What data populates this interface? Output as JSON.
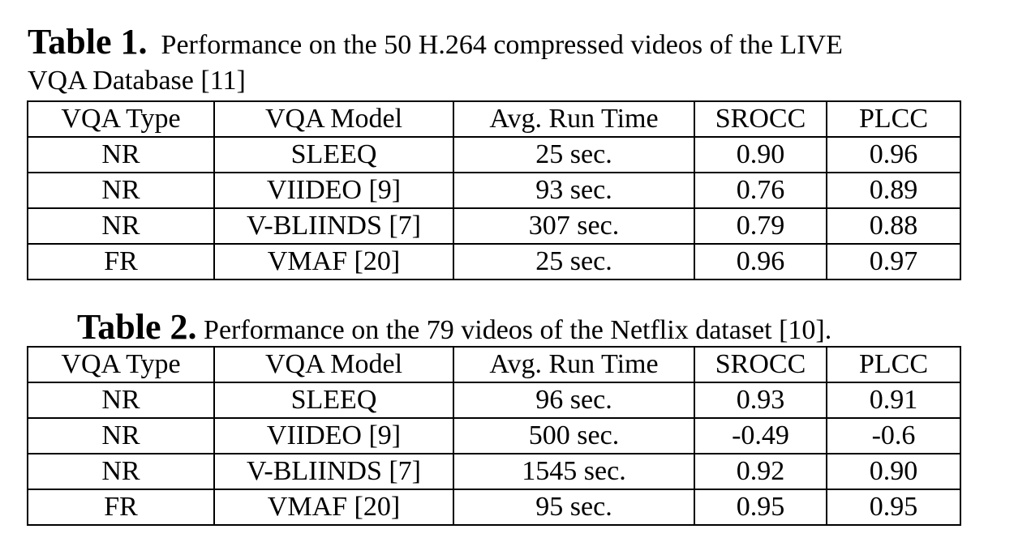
{
  "table1": {
    "label": "Table 1",
    "caption_line1": "Performance on the 50 H.264 compressed videos of the LIVE",
    "caption_line2": "VQA Database [11]",
    "headers": [
      "VQA Type",
      "VQA Model",
      "Avg. Run Time",
      "SROCC",
      "PLCC"
    ],
    "rows": [
      [
        "NR",
        "SLEEQ",
        "25 sec.",
        "0.90",
        "0.96"
      ],
      [
        "NR",
        "VIIDEO [9]",
        "93 sec.",
        "0.76",
        "0.89"
      ],
      [
        "NR",
        "V-BLIINDS [7]",
        "307 sec.",
        "0.79",
        "0.88"
      ],
      [
        "FR",
        "VMAF [20]",
        "25 sec.",
        "0.96",
        "0.97"
      ]
    ]
  },
  "table2": {
    "label": "Table 2",
    "caption": "Performance on the 79 videos of the Netflix dataset [10].",
    "headers": [
      "VQA Type",
      "VQA Model",
      "Avg. Run Time",
      "SROCC",
      "PLCC"
    ],
    "rows": [
      [
        "NR",
        "SLEEQ",
        "96 sec.",
        "0.93",
        "0.91"
      ],
      [
        "NR",
        "VIIDEO [9]",
        "500 sec.",
        "-0.49",
        "-0.6"
      ],
      [
        "NR",
        "V-BLIINDS [7]",
        "1545 sec.",
        "0.92",
        "0.90"
      ],
      [
        "FR",
        "VMAF [20]",
        "95 sec.",
        "0.95",
        "0.95"
      ]
    ]
  }
}
